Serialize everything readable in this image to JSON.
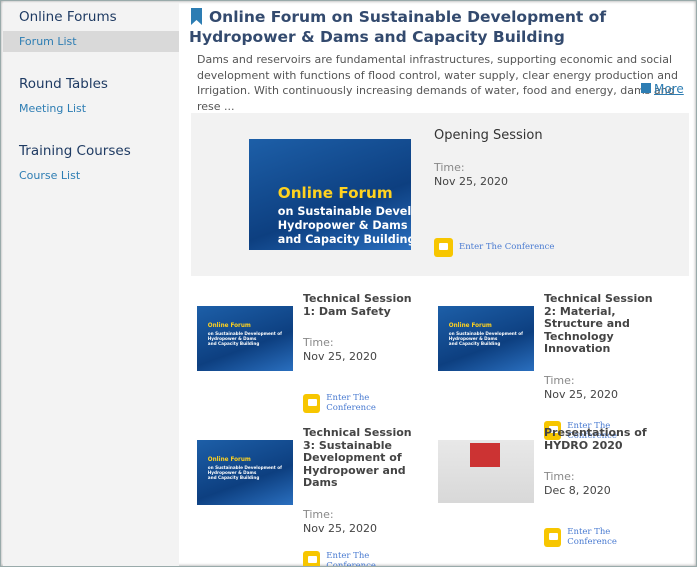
{
  "sidebar": {
    "sections": [
      {
        "title": "Online Forums",
        "links": [
          "Forum List"
        ]
      },
      {
        "title": "Round Tables",
        "links": [
          "Meeting List"
        ]
      },
      {
        "title": "Training Courses",
        "links": [
          "Course List"
        ]
      }
    ]
  },
  "header": {
    "title": "Online Forum on Sustainable Development of Hydropower & Dams and Capacity Building",
    "description": "Dams and reservoirs are fundamental infrastructures, supporting economic and social development with functions of flood control, water supply, clear energy production and Irrigation. With continuously increasing demands of water, food and energy, dams and rese ...",
    "more": "More"
  },
  "poster": {
    "title": "Online Forum",
    "subtitle": [
      "on Sustainable Development of",
      "Hydropower & Dams",
      "and Capacity Building"
    ]
  },
  "featured": {
    "title": "Opening Session",
    "time_label": "Time:",
    "date": "Nov 25, 2020",
    "button": "Enter The Conference"
  },
  "sessions": [
    {
      "title": "Technical Session 1: Dam Safety",
      "time_label": "Time:",
      "date": "Nov 25, 2020",
      "button": "Enter The Conference"
    },
    {
      "title": "Technical Session 2: Material, Structure and Technology Innovation",
      "time_label": "Time:",
      "date": "Nov 25, 2020",
      "button": "Enter The Conference"
    },
    {
      "title": "Technical Session 3: Sustainable Development of Hydropower and Dams",
      "time_label": "Time:",
      "date": "Nov 25, 2020",
      "button": "Enter The Conference"
    },
    {
      "title": "Presentations of HYDRO 2020",
      "time_label": "Time:",
      "date": "Dec 8, 2020",
      "button": "Enter The Conference"
    }
  ]
}
